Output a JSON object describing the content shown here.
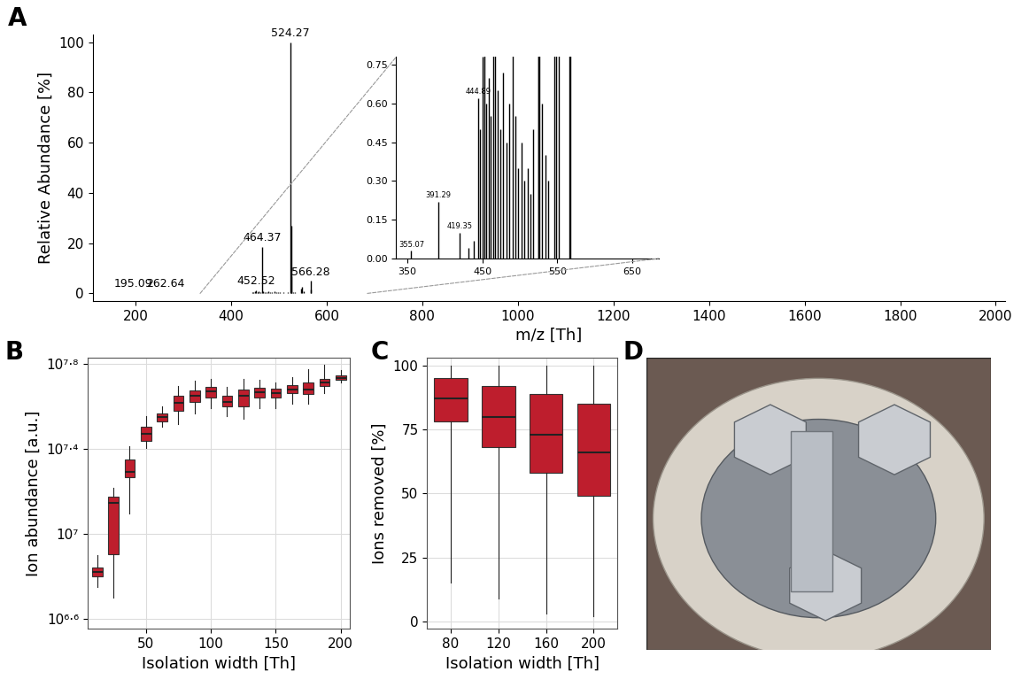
{
  "chart_data": [
    {
      "panel": "A",
      "type": "spectrum",
      "color": "#000000",
      "x_label": "m/z [Th]",
      "y_label": "Relative Abundance [%]",
      "x": [
        195.09,
        262.64,
        355.07,
        391.29,
        419.35,
        431,
        438,
        444.89,
        447,
        450,
        452.52,
        455,
        458,
        461,
        464.37,
        467,
        470,
        474,
        478,
        482,
        486,
        490,
        494,
        498,
        502,
        506,
        510,
        514,
        518,
        524.27,
        525.27,
        526.27,
        530,
        534,
        538,
        546,
        548,
        552,
        566.28,
        567.28
      ],
      "values": [
        0.3,
        0.2,
        0.03,
        0.22,
        0.1,
        0.04,
        0.07,
        0.62,
        0.5,
        0.78,
        1.2,
        0.6,
        0.7,
        0.55,
        18.5,
        0.8,
        0.65,
        0.5,
        0.72,
        0.45,
        0.6,
        0.9,
        0.55,
        0.35,
        0.45,
        0.3,
        0.35,
        0.25,
        0.5,
        100,
        27,
        7,
        0.6,
        0.4,
        0.3,
        2,
        2.5,
        1,
        5,
        1.5
      ],
      "labeled": [
        195.09,
        262.64,
        452.52,
        464.37,
        524.27,
        566.28
      ],
      "xlim": [
        110,
        2020
      ],
      "xticks": [
        200,
        400,
        600,
        800,
        1000,
        1200,
        1400,
        1600,
        1800,
        2000
      ],
      "ylim": [
        -3,
        103
      ],
      "yticks": [
        0,
        20,
        40,
        60,
        80,
        100
      ],
      "grid": false,
      "inset": {
        "xlim": [
          335,
          685
        ],
        "xticks": [
          350,
          450,
          550,
          650
        ],
        "ylim": [
          0,
          0.78
        ],
        "yticks": [
          {
            "value": 0,
            "label": "0.00"
          },
          {
            "value": 0.15,
            "label": "0.15"
          },
          {
            "value": 0.3,
            "label": "0.30"
          },
          {
            "value": 0.45,
            "label": "0.45"
          },
          {
            "value": 0.6,
            "label": "0.60"
          },
          {
            "value": 0.75,
            "label": "0.75"
          }
        ],
        "labeled": [
          355.07,
          391.29,
          419.35,
          444.89
        ]
      }
    },
    {
      "panel": "B",
      "type": "box",
      "color": "#be1e2d",
      "log": "y",
      "grid": true,
      "x_label": "Isolation width [Th]",
      "y_label": "Ion abundance [a.u.]",
      "x": [
        12.5,
        25,
        37.5,
        50,
        62.5,
        75,
        87.5,
        100,
        112.5,
        125,
        137.5,
        150,
        162.5,
        175,
        187.5,
        200
      ],
      "boxes": [
        {
          "whislo": 5600000,
          "q1": 6300000,
          "med": 6600000,
          "q3": 6900000,
          "whishi": 7900000
        },
        {
          "whislo": 5000000,
          "q1": 8000000,
          "med": 14000000,
          "q3": 15000000,
          "whishi": 16500000
        },
        {
          "whislo": 12500000,
          "q1": 18500000,
          "med": 19500000,
          "q3": 22500000,
          "whishi": 26000000
        },
        {
          "whislo": 25500000,
          "q1": 27500000,
          "med": 29500000,
          "q3": 32000000,
          "whishi": 36000000
        },
        {
          "whislo": 32000000,
          "q1": 34000000,
          "med": 35500000,
          "q3": 37000000,
          "whishi": 40000000
        },
        {
          "whislo": 33000000,
          "q1": 38000000,
          "med": 41500000,
          "q3": 45000000,
          "whishi": 50000000
        },
        {
          "whislo": 37000000,
          "q1": 42000000,
          "med": 45000000,
          "q3": 47500000,
          "whishi": 53000000
        },
        {
          "whislo": 39000000,
          "q1": 44000000,
          "med": 47000000,
          "q3": 49500000,
          "whishi": 54000000
        },
        {
          "whislo": 36000000,
          "q1": 40000000,
          "med": 42000000,
          "q3": 45000000,
          "whishi": 49500000
        },
        {
          "whislo": 35000000,
          "q1": 40000000,
          "med": 45000000,
          "q3": 48000000,
          "whishi": 54000000
        },
        {
          "whislo": 39000000,
          "q1": 44000000,
          "med": 46500000,
          "q3": 49000000,
          "whishi": 53500000
        },
        {
          "whislo": 39000000,
          "q1": 44000000,
          "med": 46000000,
          "q3": 48500000,
          "whishi": 52000000
        },
        {
          "whislo": 41000000,
          "q1": 46000000,
          "med": 48000000,
          "q3": 50500000,
          "whishi": 55000000
        },
        {
          "whislo": 41000000,
          "q1": 45500000,
          "med": 48000000,
          "q3": 52000000,
          "whishi": 60000000
        },
        {
          "whislo": 46000000,
          "q1": 50000000,
          "med": 52000000,
          "q3": 54000000,
          "whishi": 63000000
        },
        {
          "whislo": 52000000,
          "q1": 53500000,
          "med": 54500000,
          "q3": 56000000,
          "whishi": 59000000
        }
      ],
      "xlim": [
        5,
        207
      ],
      "xticks": [
        50,
        100,
        150,
        200
      ],
      "ylim": [
        3550000,
        67600000
      ],
      "yticks": [
        {
          "value": 3981072,
          "label": "10⁶·⁶"
        },
        {
          "value": 10000000,
          "label": "10⁷"
        },
        {
          "value": 25118864,
          "label": "10⁷·⁴"
        },
        {
          "value": 63095734,
          "label": "10⁷·⁸"
        }
      ]
    },
    {
      "panel": "C",
      "type": "box",
      "color": "#be1e2d",
      "grid": true,
      "x_label": "Isolation width [Th]",
      "y_label": "Ions removed [%]",
      "categories": [
        "80",
        "120",
        "160",
        "200"
      ],
      "boxes": [
        {
          "whislo": 15,
          "q1": 78,
          "med": 87,
          "q3": 95,
          "whishi": 100
        },
        {
          "whislo": 9,
          "q1": 68,
          "med": 80,
          "q3": 92,
          "whishi": 100
        },
        {
          "whislo": 3,
          "q1": 58,
          "med": 73,
          "q3": 89,
          "whishi": 100
        },
        {
          "whislo": 2,
          "q1": 49,
          "med": 66,
          "q3": 85,
          "whishi": 100
        }
      ],
      "ylim": [
        -3,
        103
      ],
      "yticks": [
        0,
        25,
        50,
        75,
        100
      ]
    },
    {
      "panel": "D",
      "type": "photo"
    }
  ]
}
